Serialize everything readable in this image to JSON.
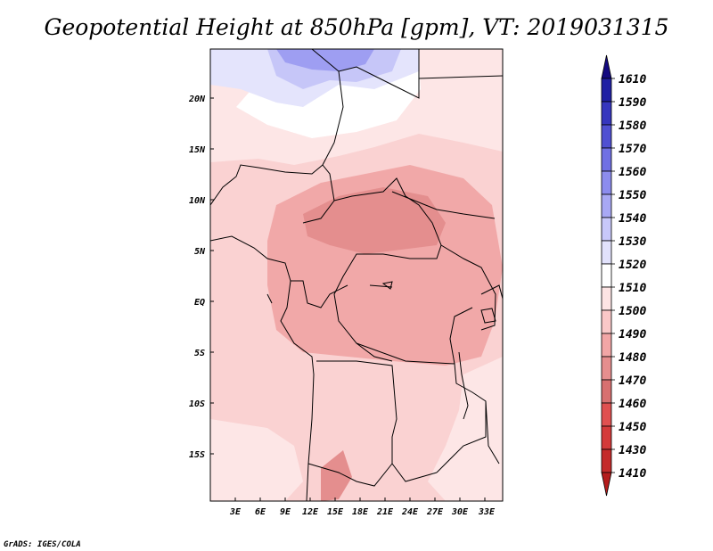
{
  "title": "Geopotential Height at 850hPa [gpm], VT: 2019031315",
  "credit": "GrADS: IGES/COLA",
  "chart_data": {
    "type": "heatmap",
    "title": "Geopotential Height at 850hPa [gpm], VT: 2019031315",
    "variable": "Geopotential Height",
    "level": "850hPa",
    "units": "gpm",
    "valid_time": "2019031315",
    "x_ticks": [
      "3E",
      "6E",
      "9E",
      "12E",
      "15E",
      "18E",
      "21E",
      "24E",
      "27E",
      "30E",
      "33E"
    ],
    "y_ticks": [
      "20N",
      "15N",
      "10N",
      "5N",
      "EQ",
      "5S",
      "10S",
      "15S"
    ],
    "lon_range": [
      0,
      35
    ],
    "lat_range": [
      -20,
      24
    ],
    "colorbar": {
      "levels": [
        "1410",
        "1430",
        "1450",
        "1460",
        "1470",
        "1480",
        "1490",
        "1500",
        "1510",
        "1520",
        "1530",
        "1540",
        "1550",
        "1560",
        "1570",
        "1580",
        "1590",
        "1610"
      ],
      "colors": [
        "#b41c1c",
        "#c42a2a",
        "#d43a3a",
        "#e05050",
        "#d87070",
        "#e68e8e",
        "#f2a6a6",
        "#fac8c8",
        "#fde4e4",
        "#ffffff",
        "#e2e2fc",
        "#c8c8fa",
        "#a8a8f4",
        "#8c8cee",
        "#7070e4",
        "#5050d2",
        "#3636be",
        "#2020a4",
        "#140a80"
      ]
    }
  }
}
